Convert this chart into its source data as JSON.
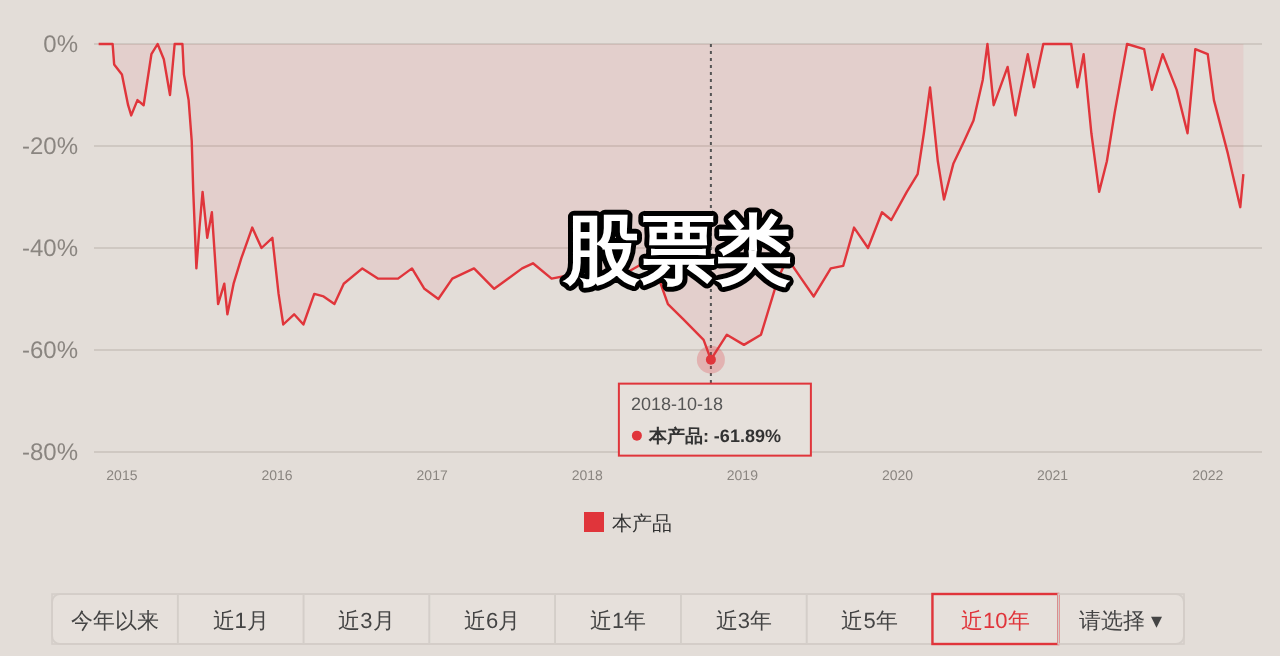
{
  "chart_data": [
    {
      "type": "area",
      "annotations": [
        "股票类",
        {
          "text": "2018-10-18\n本产品: -61.89%",
          "x": 2018.797,
          "y": -61.89
        }
      ],
      "xlim": [
        2014.82,
        2022.35
      ],
      "xticks": [
        2015,
        2016,
        2017,
        2018,
        2019,
        2020,
        2021,
        2022
      ],
      "ylim": [
        -80,
        0
      ],
      "yticks": [
        {
          "value": 0,
          "label": "0%"
        },
        {
          "value": -20,
          "label": "-20%"
        },
        {
          "value": -40,
          "label": "-40%"
        },
        {
          "value": -60,
          "label": "-60%"
        },
        {
          "value": -80,
          "label": "-80%"
        }
      ],
      "grid": "y",
      "legend": "bottom",
      "ref_lines": [
        {
          "axis": "x",
          "value": 2018.797,
          "label": null,
          "color": "#555555",
          "line_style": "dotted"
        }
      ],
      "series": [
        {
          "name": "本产品",
          "color": "#e0353b",
          "x": [
            2014.85,
            2014.94,
            2014.95,
            2015.0,
            2015.04,
            2015.06,
            2015.1,
            2015.14,
            2015.19,
            2015.23,
            2015.27,
            2015.31,
            2015.34,
            2015.39,
            2015.4,
            2015.43,
            2015.45,
            2015.46,
            2015.48,
            2015.5,
            2015.52,
            2015.55,
            2015.58,
            2015.62,
            2015.66,
            2015.68,
            2015.72,
            2015.77,
            2015.84,
            2015.9,
            2015.97,
            2016.01,
            2016.04,
            2016.11,
            2016.17,
            2016.24,
            2016.3,
            2016.37,
            2016.43,
            2016.55,
            2016.65,
            2016.78,
            2016.87,
            2016.95,
            2017.04,
            2017.13,
            2017.27,
            2017.4,
            2017.58,
            2017.65,
            2017.77,
            2017.94,
            2018.13,
            2018.36,
            2018.45,
            2018.52,
            2018.62,
            2018.75,
            2018.797,
            2018.9,
            2019.01,
            2019.12,
            2019.23,
            2019.29,
            2019.38,
            2019.46,
            2019.57,
            2019.65,
            2019.72,
            2019.81,
            2019.9,
            2019.96,
            2020.06,
            2020.13,
            2020.17,
            2020.21,
            2020.26,
            2020.3,
            2020.36,
            2020.43,
            2020.49,
            2020.55,
            2020.58,
            2020.62,
            2020.71,
            2020.76,
            2020.84,
            2020.88,
            2020.94,
            2021.12,
            2021.16,
            2021.2,
            2021.25,
            2021.3,
            2021.35,
            2021.4,
            2021.48,
            2021.59,
            2021.64,
            2021.71,
            2021.8,
            2021.87,
            2021.92,
            2022.0,
            2022.04,
            2022.13,
            2022.16,
            2022.21,
            2022.23
          ],
          "values": [
            0,
            0,
            -4,
            -6,
            -12,
            -14,
            -11,
            -12,
            -2,
            0,
            -3,
            -10,
            0,
            0,
            -6,
            -11,
            -19,
            -29,
            -44,
            -36,
            -29,
            -38,
            -33,
            -51,
            -47,
            -53,
            -47,
            -42,
            -36,
            -40,
            -38,
            -49,
            -55,
            -53,
            -55,
            -49,
            -49.5,
            -51,
            -47,
            -44,
            -46,
            -46,
            -44,
            -48,
            -50,
            -46,
            -44,
            -48,
            -44,
            -43,
            -46,
            -45,
            -47,
            -43,
            -45,
            -51,
            -54,
            -58,
            -61.89,
            -57,
            -59,
            -57,
            -46,
            -42,
            -46,
            -49.5,
            -44,
            -43.5,
            -36,
            -40,
            -33,
            -34.5,
            -29,
            -25.5,
            -17.5,
            -8.5,
            -23,
            -30.5,
            -23.5,
            -19,
            -15,
            -7,
            0,
            -12,
            -4.5,
            -14,
            -2,
            -8.5,
            0,
            0,
            -8.5,
            -2,
            -17.5,
            -29,
            -23,
            -13.5,
            0,
            -1,
            -9,
            -2,
            -9,
            -17.5,
            -1,
            -2,
            -11,
            -21.5,
            -25.5,
            -32,
            -25.5
          ]
        }
      ]
    },
    {
      "type": "other",
      "categories": [
        "今年以来",
        "近1月",
        "近3月",
        "近6月",
        "近1年",
        "近3年",
        "近5年",
        "近10年",
        "请选择 ▾"
      ],
      "colors": [
        "#d4cec9",
        "#d4cec9",
        "#d4cec9",
        "#d4cec9",
        "#d4cec9",
        "#d4cec9",
        "#d4cec9",
        "#e0353b",
        "#d4cec9"
      ]
    }
  ]
}
